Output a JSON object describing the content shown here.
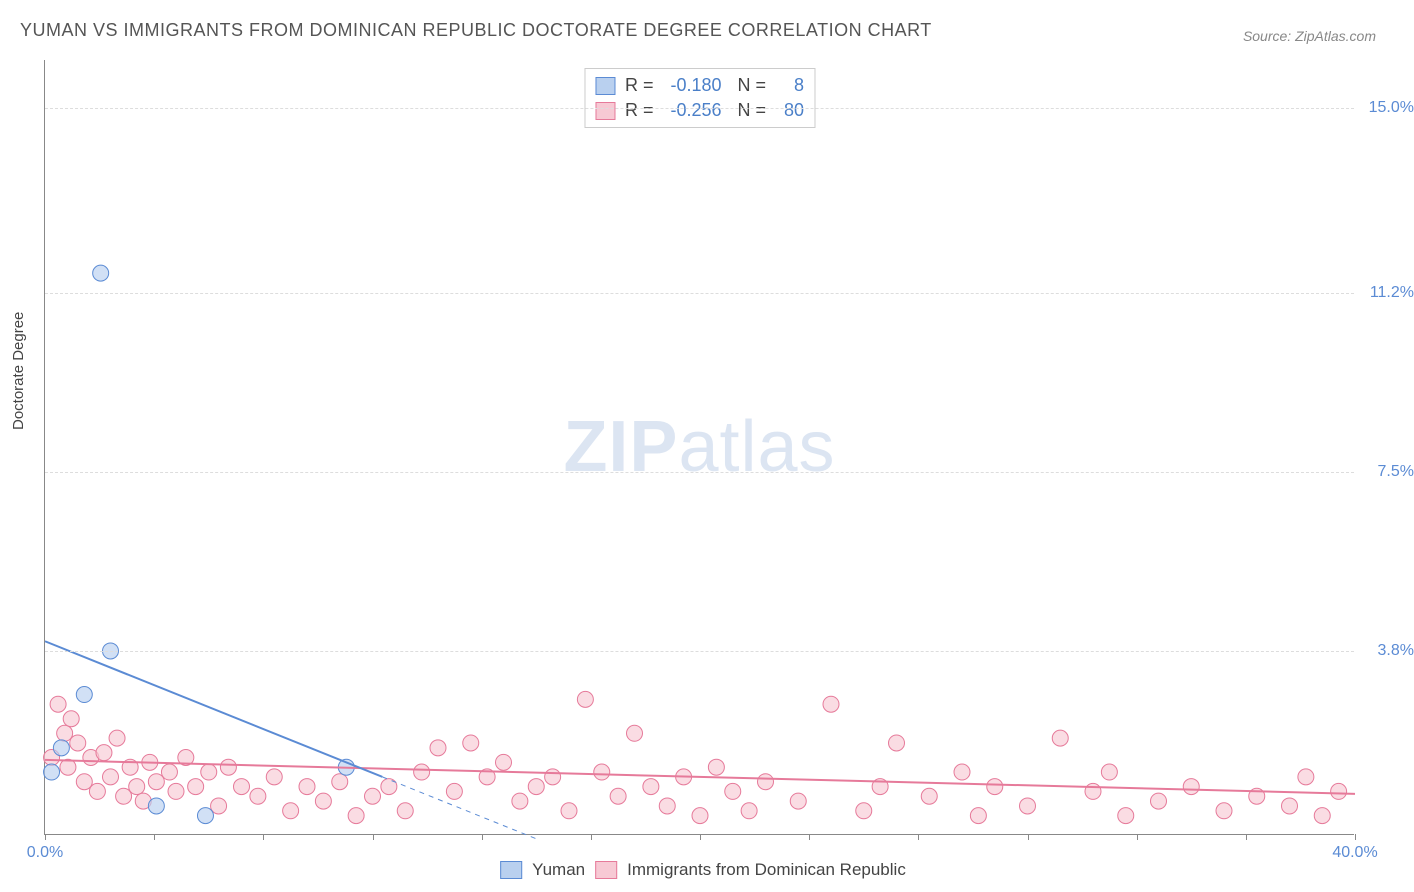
{
  "title": "YUMAN VS IMMIGRANTS FROM DOMINICAN REPUBLIC DOCTORATE DEGREE CORRELATION CHART",
  "source": "Source: ZipAtlas.com",
  "ylabel": "Doctorate Degree",
  "watermark_bold": "ZIP",
  "watermark_light": "atlas",
  "chart": {
    "type": "scatter",
    "background_color": "#ffffff",
    "grid_color": "#dddddd",
    "axis_color": "#888888",
    "xlim": [
      0.0,
      40.0
    ],
    "ylim": [
      0.0,
      16.0
    ],
    "yticks": [
      {
        "v": 3.8,
        "label": "3.8%"
      },
      {
        "v": 7.5,
        "label": "7.5%"
      },
      {
        "v": 11.2,
        "label": "11.2%"
      },
      {
        "v": 15.0,
        "label": "15.0%"
      }
    ],
    "xticks_major": [
      0.0,
      40.0
    ],
    "xtick_labels": {
      "0.0": "0.0%",
      "40.0": "40.0%"
    },
    "xticks_minor": [
      3.33,
      6.67,
      10.0,
      13.33,
      16.67,
      20.0,
      23.33,
      26.67,
      30.0,
      33.33,
      36.67
    ],
    "marker_radius": 8,
    "series": [
      {
        "name": "Yuman",
        "fill": "#b9d0ef",
        "stroke": "#5b8bd4",
        "R": "-0.180",
        "N": "8",
        "points": [
          [
            1.7,
            11.6
          ],
          [
            1.2,
            2.9
          ],
          [
            2.0,
            3.8
          ],
          [
            0.5,
            1.8
          ],
          [
            0.2,
            1.3
          ],
          [
            3.4,
            0.6
          ],
          [
            4.9,
            0.4
          ],
          [
            9.2,
            1.4
          ]
        ],
        "trend": {
          "x1": 0.0,
          "y1": 4.0,
          "x2": 10.3,
          "y2": 1.2,
          "dash_to_x": 15.0,
          "width": 2
        }
      },
      {
        "name": "Immigrants from Dominican Republic",
        "fill": "#f7c9d4",
        "stroke": "#e67a9a",
        "R": "-0.256",
        "N": "80",
        "points": [
          [
            0.2,
            1.6
          ],
          [
            0.4,
            2.7
          ],
          [
            0.6,
            2.1
          ],
          [
            0.7,
            1.4
          ],
          [
            0.8,
            2.4
          ],
          [
            1.0,
            1.9
          ],
          [
            1.2,
            1.1
          ],
          [
            1.4,
            1.6
          ],
          [
            1.6,
            0.9
          ],
          [
            1.8,
            1.7
          ],
          [
            2.0,
            1.2
          ],
          [
            2.2,
            2.0
          ],
          [
            2.4,
            0.8
          ],
          [
            2.6,
            1.4
          ],
          [
            2.8,
            1.0
          ],
          [
            3.0,
            0.7
          ],
          [
            3.2,
            1.5
          ],
          [
            3.4,
            1.1
          ],
          [
            3.8,
            1.3
          ],
          [
            4.0,
            0.9
          ],
          [
            4.3,
            1.6
          ],
          [
            4.6,
            1.0
          ],
          [
            5.0,
            1.3
          ],
          [
            5.3,
            0.6
          ],
          [
            5.6,
            1.4
          ],
          [
            6.0,
            1.0
          ],
          [
            6.5,
            0.8
          ],
          [
            7.0,
            1.2
          ],
          [
            7.5,
            0.5
          ],
          [
            8.0,
            1.0
          ],
          [
            8.5,
            0.7
          ],
          [
            9.0,
            1.1
          ],
          [
            9.5,
            0.4
          ],
          [
            10.0,
            0.8
          ],
          [
            10.5,
            1.0
          ],
          [
            11.0,
            0.5
          ],
          [
            11.5,
            1.3
          ],
          [
            12.0,
            1.8
          ],
          [
            12.5,
            0.9
          ],
          [
            13.0,
            1.9
          ],
          [
            13.5,
            1.2
          ],
          [
            14.0,
            1.5
          ],
          [
            14.5,
            0.7
          ],
          [
            15.0,
            1.0
          ],
          [
            15.5,
            1.2
          ],
          [
            16.0,
            0.5
          ],
          [
            16.5,
            2.8
          ],
          [
            17.0,
            1.3
          ],
          [
            17.5,
            0.8
          ],
          [
            18.0,
            2.1
          ],
          [
            18.5,
            1.0
          ],
          [
            19.0,
            0.6
          ],
          [
            19.5,
            1.2
          ],
          [
            20.0,
            0.4
          ],
          [
            20.5,
            1.4
          ],
          [
            21.0,
            0.9
          ],
          [
            21.5,
            0.5
          ],
          [
            22.0,
            1.1
          ],
          [
            23.0,
            0.7
          ],
          [
            24.0,
            2.7
          ],
          [
            25.0,
            0.5
          ],
          [
            25.5,
            1.0
          ],
          [
            26.0,
            1.9
          ],
          [
            27.0,
            0.8
          ],
          [
            28.0,
            1.3
          ],
          [
            28.5,
            0.4
          ],
          [
            29.0,
            1.0
          ],
          [
            30.0,
            0.6
          ],
          [
            31.0,
            2.0
          ],
          [
            32.0,
            0.9
          ],
          [
            32.5,
            1.3
          ],
          [
            33.0,
            0.4
          ],
          [
            34.0,
            0.7
          ],
          [
            35.0,
            1.0
          ],
          [
            36.0,
            0.5
          ],
          [
            37.0,
            0.8
          ],
          [
            38.0,
            0.6
          ],
          [
            38.5,
            1.2
          ],
          [
            39.0,
            0.4
          ],
          [
            39.5,
            0.9
          ]
        ],
        "trend": {
          "x1": 0.0,
          "y1": 1.55,
          "x2": 40.0,
          "y2": 0.85,
          "width": 2
        }
      }
    ]
  },
  "legend_bottom": [
    {
      "label": "Yuman",
      "fill": "#b9d0ef",
      "stroke": "#5b8bd4"
    },
    {
      "label": "Immigrants from Dominican Republic",
      "fill": "#f7c9d4",
      "stroke": "#e67a9a"
    }
  ]
}
